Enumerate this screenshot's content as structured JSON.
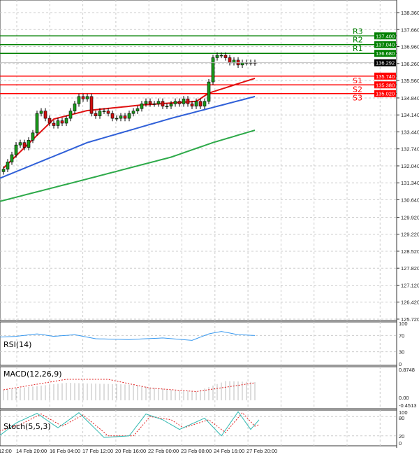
{
  "price_axis": {
    "ticks": [
      "138.360",
      "137.660",
      "136.960",
      "136.260",
      "135.560",
      "134.840",
      "134.140",
      "133.440",
      "132.740",
      "132.040",
      "131.340",
      "130.640",
      "129.920",
      "129.220",
      "128.520",
      "127.820",
      "127.120",
      "126.420",
      "125.720"
    ],
    "tick_values": [
      138.36,
      137.66,
      136.96,
      136.26,
      135.56,
      134.84,
      134.14,
      133.44,
      132.74,
      132.04,
      131.34,
      130.64,
      129.92,
      129.22,
      128.52,
      127.82,
      127.12,
      126.42,
      125.72
    ],
    "range": [
      125.72,
      138.36
    ]
  },
  "current_price": {
    "label": "136.292",
    "value": 136.292
  },
  "levels": [
    {
      "name": "R3",
      "label": "137.400",
      "value": 137.4,
      "color": "#008000"
    },
    {
      "name": "R2",
      "label": "137.040",
      "value": 137.04,
      "color": "#008000"
    },
    {
      "name": "R1",
      "label": "136.680",
      "value": 136.68,
      "color": "#008000"
    },
    {
      "name": "S1",
      "label": "135.740",
      "value": 135.74,
      "color": "#ff0000"
    },
    {
      "name": "S2",
      "label": "135.380",
      "value": 135.38,
      "color": "#ff0000"
    },
    {
      "name": "S3",
      "label": "135.020",
      "value": 135.02,
      "color": "#ff0000"
    }
  ],
  "chart_data": {
    "type": "candlestick",
    "closes": [
      131.9,
      132.2,
      132.5,
      132.9,
      133.0,
      132.8,
      133.1,
      133.4,
      134.2,
      134.3,
      134.0,
      133.8,
      133.7,
      133.9,
      133.8,
      134.0,
      134.3,
      134.6,
      134.9,
      134.8,
      134.9,
      134.2,
      134.1,
      134.3,
      134.3,
      134.2,
      134.0,
      134.0,
      134.1,
      134.0,
      134.2,
      134.3,
      134.4,
      134.6,
      134.7,
      134.6,
      134.6,
      134.7,
      134.5,
      134.5,
      134.6,
      134.7,
      134.6,
      134.8,
      134.6,
      134.5,
      134.7,
      134.5,
      134.7,
      135.5,
      136.5,
      136.6,
      136.6,
      136.5,
      136.3,
      136.4,
      136.2,
      136.3,
      136.3,
      136.3,
      136.292
    ],
    "ma_fast": [
      [
        0,
        131.95
      ],
      [
        12,
        133.97
      ],
      [
        20,
        134.32
      ],
      [
        33,
        134.55
      ],
      [
        46,
        134.7
      ],
      [
        49,
        135.04
      ],
      [
        60,
        135.65
      ]
    ],
    "ma_mid": [
      [
        -1,
        131.52
      ],
      [
        20,
        133.0
      ],
      [
        40,
        134.0
      ],
      [
        50,
        134.45
      ],
      [
        60,
        134.9
      ]
    ],
    "ma_slow": [
      [
        -1,
        130.57
      ],
      [
        20,
        131.5
      ],
      [
        40,
        132.4
      ],
      [
        50,
        133.0
      ],
      [
        60,
        133.51
      ]
    ]
  },
  "rsi": {
    "label": "RSI(14)",
    "scale": [
      "100",
      "70",
      "30",
      "0"
    ],
    "values": [
      [
        -1,
        66
      ],
      [
        3,
        68
      ],
      [
        8,
        74
      ],
      [
        12,
        68
      ],
      [
        17,
        72
      ],
      [
        22,
        62
      ],
      [
        30,
        60
      ],
      [
        38,
        64
      ],
      [
        45,
        58
      ],
      [
        49,
        74
      ],
      [
        52,
        80
      ],
      [
        56,
        72
      ],
      [
        60,
        70
      ]
    ]
  },
  "macd": {
    "label": "MACD(12,26,9)",
    "scale": [
      "0.8748",
      "0.00",
      "-0.4513"
    ],
    "hist": [
      [
        0,
        0.3
      ],
      [
        15,
        0.5
      ],
      [
        30,
        0.45
      ],
      [
        40,
        0.3
      ],
      [
        46,
        0.25
      ],
      [
        53,
        0.55
      ],
      [
        60,
        0.52
      ]
    ],
    "signal": [
      [
        0,
        0.3
      ],
      [
        15,
        0.6
      ],
      [
        25,
        0.6
      ],
      [
        35,
        0.35
      ],
      [
        46,
        0.25
      ],
      [
        60,
        0.5
      ]
    ]
  },
  "stoch": {
    "label": "Stoch(5,5,3)",
    "scale": [
      "100",
      "80",
      "20",
      "0"
    ],
    "k": [
      [
        -1,
        20
      ],
      [
        3,
        60
      ],
      [
        8,
        90
      ],
      [
        13,
        45
      ],
      [
        18,
        92
      ],
      [
        24,
        15
      ],
      [
        30,
        20
      ],
      [
        34,
        88
      ],
      [
        38,
        70
      ],
      [
        42,
        40
      ],
      [
        48,
        75
      ],
      [
        52,
        20
      ],
      [
        56,
        95
      ],
      [
        59,
        40
      ],
      [
        61,
        70
      ]
    ],
    "d": [
      [
        -1,
        35
      ],
      [
        4,
        55
      ],
      [
        9,
        88
      ],
      [
        14,
        50
      ],
      [
        19,
        85
      ],
      [
        25,
        20
      ],
      [
        31,
        20
      ],
      [
        35,
        80
      ],
      [
        40,
        70
      ],
      [
        43,
        45
      ],
      [
        49,
        70
      ],
      [
        53,
        30
      ],
      [
        57,
        92
      ],
      [
        60,
        50
      ],
      [
        61,
        55
      ]
    ]
  },
  "time_axis": [
    "12:00",
    "14 Feb 20:00",
    "16 Feb 04:00",
    "17 Feb 12:00",
    "20 Feb 16:00",
    "22 Feb 00:00",
    "23 Feb 08:00",
    "24 Feb 16:00",
    "27 Feb 20:00"
  ]
}
